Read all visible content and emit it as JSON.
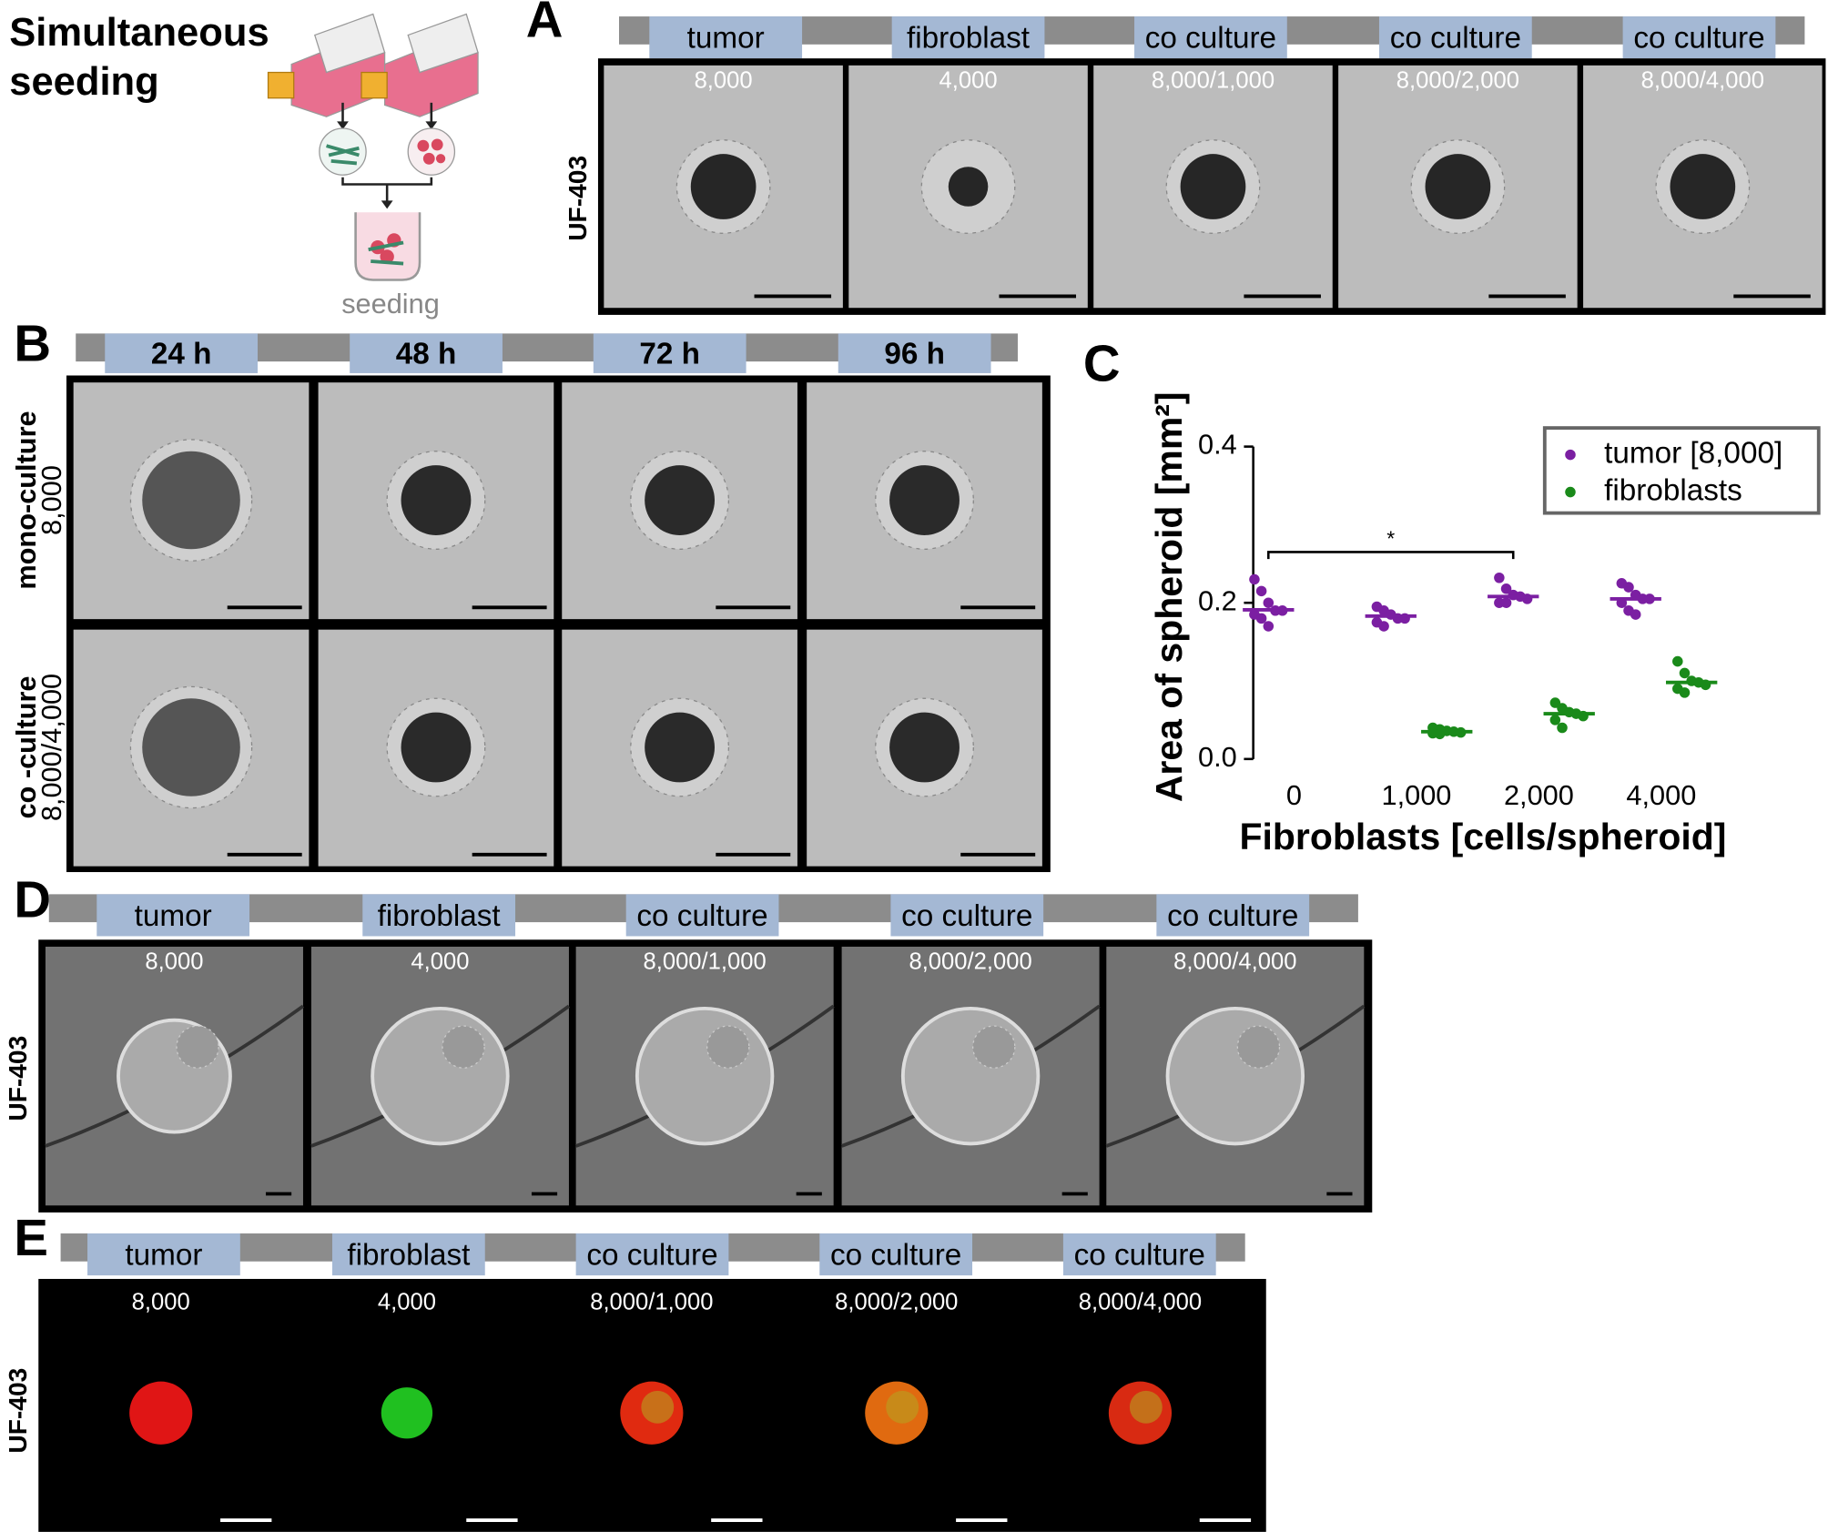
{
  "schematic": {
    "title_lines": [
      "Simultaneous",
      "seeding"
    ],
    "step": "seeding"
  },
  "panel_a": {
    "label": "A",
    "columns": [
      "tumor",
      "fibroblast",
      "co culture",
      "co culture",
      "co culture"
    ],
    "counts": [
      "8,000",
      "4,000",
      "8,000/1,000",
      "8,000/2,000",
      "8,000/4,000"
    ],
    "row_label": "UF-403"
  },
  "panel_b": {
    "label": "B",
    "columns": [
      "24 h",
      "48 h",
      "72 h",
      "96 h"
    ],
    "rows": [
      [
        "mono-culture",
        "8,000"
      ],
      [
        "co -culture",
        "8,000/4,000"
      ]
    ]
  },
  "panel_c": {
    "label": "C"
  },
  "chart_data": {
    "type": "strip",
    "y_label": "Area of spheroid [mm²]",
    "x_label": "Fibroblasts [cells/spheroid]",
    "categories": [
      "0",
      "1,000",
      "2,000",
      "4,000"
    ],
    "ylim": [
      0,
      0.4
    ],
    "yticks": [
      {
        "value": 0,
        "label": "0.0"
      },
      0.2,
      0.4
    ],
    "legend": "top-right",
    "series": [
      {
        "name": "tumor [8,000]",
        "color": "#7b1fa2",
        "values": [
          [
            0.23,
            0.215,
            0.2,
            0.19,
            0.19,
            0.185,
            0.18,
            0.17
          ],
          [
            0.195,
            0.19,
            0.185,
            0.18,
            0.18,
            0.175,
            0.17
          ],
          [
            0.232,
            0.218,
            0.21,
            0.208,
            0.205,
            0.2,
            0.2
          ],
          [
            0.225,
            0.22,
            0.21,
            0.205,
            0.205,
            0.2,
            0.19,
            0.185
          ]
        ],
        "medians": [
          0.191,
          0.183,
          0.208,
          0.205
        ]
      },
      {
        "name": "fibroblasts",
        "color": "#1a8a1a",
        "values": [
          null,
          [
            0.04,
            0.038,
            0.036,
            0.035,
            0.034,
            0.033,
            0.032
          ],
          [
            0.072,
            0.065,
            0.06,
            0.058,
            0.055,
            0.05,
            0.04
          ],
          [
            0.125,
            0.11,
            0.1,
            0.098,
            0.095,
            0.09,
            0.085
          ]
        ],
        "medians": [
          null,
          0.035,
          0.058,
          0.098
        ]
      }
    ],
    "annotations": [
      {
        "text": "*",
        "y": 0.265,
        "between": [
          "0",
          "2,000"
        ]
      }
    ]
  },
  "panel_d": {
    "label": "D",
    "columns": [
      "tumor",
      "fibroblast",
      "co culture",
      "co culture",
      "co culture"
    ],
    "counts": [
      "8,000",
      "4,000",
      "8,000/1,000",
      "8,000/2,000",
      "8,000/4,000"
    ],
    "row_label": "UF-403"
  },
  "panel_e": {
    "label": "E",
    "columns": [
      "tumor",
      "fibroblast",
      "co culture",
      "co culture",
      "co culture"
    ],
    "counts": [
      "8,000",
      "4,000",
      "8,000/1,000",
      "8,000/2,000",
      "8,000/4,000"
    ],
    "row_label": "UF-403"
  }
}
